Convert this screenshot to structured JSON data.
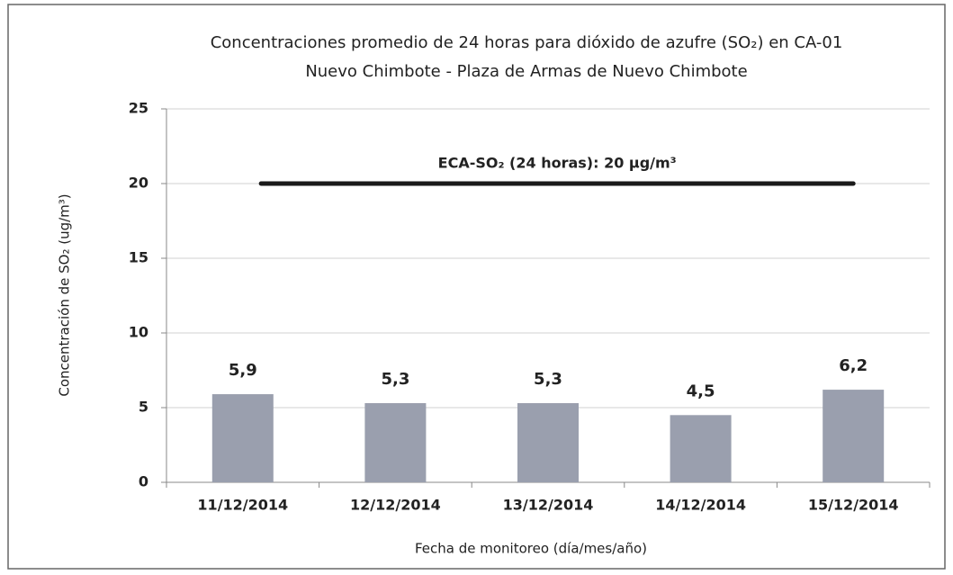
{
  "chart_data": {
    "type": "bar",
    "title": "Concentraciones promedio de 24 horas para dióxido de azufre (SO₂) en CA-01",
    "subtitle": "Nuevo Chimbote - Plaza de Armas de Nuevo Chimbote",
    "categories": [
      "11/12/2014",
      "12/12/2014",
      "13/12/2014",
      "14/12/2014",
      "15/12/2014"
    ],
    "values": [
      5.9,
      5.3,
      5.3,
      4.5,
      6.2
    ],
    "value_labels": [
      "5,9",
      "5,3",
      "5,3",
      "4,5",
      "6,2"
    ],
    "color": "#9a9fae",
    "ylim": [
      0,
      25
    ],
    "yticks": [
      0,
      5,
      10,
      15,
      20,
      25
    ],
    "grid": true,
    "x_label": "Fecha de monitoreo (día/mes/año)",
    "y_label": "Concentración de SO₂ (ug/m³)",
    "reference_line": {
      "value": 20,
      "label": "ECA-SO₂ (24 horas): 20 µg/m³",
      "color": "#1a1a1a"
    }
  }
}
